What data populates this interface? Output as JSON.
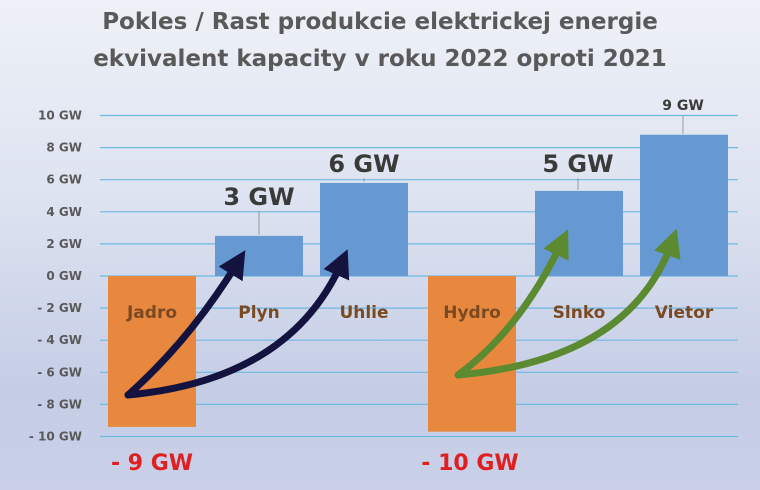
{
  "chart_data": {
    "type": "bar",
    "title": [
      "Pokles / Rast produkcie elektrickej energie",
      "ekvivalent kapacity v roku 2022 oproti 2021"
    ],
    "categories": [
      "Jadro",
      "Plyn",
      "Uhlie",
      "Hydro",
      "Slnko",
      "Vietor"
    ],
    "values": [
      -9.4,
      2.5,
      5.8,
      -9.7,
      5.3,
      8.8
    ],
    "data_labels": [
      "- 9  GW",
      "3  GW",
      "6  GW",
      "- 10  GW",
      "5  GW",
      "9  GW"
    ],
    "ylim": [
      -10,
      10
    ],
    "yticks": [
      "10 GW",
      "8 GW",
      "6 GW",
      "4 GW",
      "2 GW",
      "0 GW",
      "- 2 GW",
      "- 4 GW",
      "- 6 GW",
      "- 8 GW",
      "- 10 GW"
    ],
    "ytick_values": [
      10,
      8,
      6,
      4,
      2,
      0,
      -2,
      -4,
      -6,
      -8,
      -10
    ],
    "grid": true,
    "colors": {
      "negative": "#e8883e",
      "positive": "#6699d1",
      "grid": "#6fb8e0",
      "arrow_fossil": "#14123f",
      "arrow_renewable": "#5b8a30",
      "negative_label": "#e02020"
    },
    "arrows": [
      {
        "from": "Jadro",
        "to": [
          "Plyn",
          "Uhlie"
        ]
      },
      {
        "from": "Hydro",
        "to": [
          "Slnko",
          "Vietor"
        ]
      }
    ]
  }
}
